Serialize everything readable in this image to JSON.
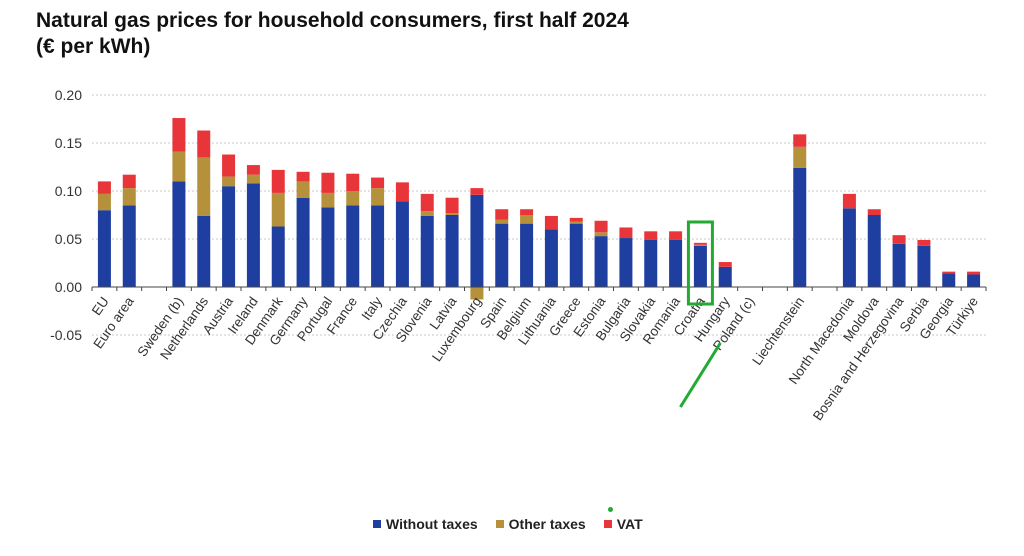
{
  "chart_data": {
    "type": "bar",
    "stacked": true,
    "title": "Natural gas prices for household consumers, first half 2024",
    "subtitle": "(€ per kWh)",
    "ylim": [
      -0.05,
      0.2
    ],
    "yticks": [
      "0.20",
      "0.15",
      "0.10",
      "0.05",
      "0.00",
      "-0.05"
    ],
    "ytick_values": [
      0.2,
      0.15,
      0.1,
      0.05,
      0.0,
      -0.05
    ],
    "grid": true,
    "legend_position": "bottom",
    "categories": [
      "EU",
      "Euro area",
      "",
      "Sweden (b)",
      "Netherlands",
      "Austria",
      "Ireland",
      "Denmark",
      "Germany",
      "Portugal",
      "France",
      "Italy",
      "Czechia",
      "Slovenia",
      "Latvia",
      "Luxembourg",
      "Spain",
      "Belgium",
      "Lithuania",
      "Greece",
      "Estonia",
      "Bulgaria",
      "Slovakia",
      "Romania",
      "Croatia",
      "Hungary",
      "Poland (c)",
      "",
      "Liechtenstein",
      "",
      "North Macedonia",
      "Moldova",
      "Bosnia and Herzegovina",
      "Serbia",
      "Georgia",
      "Türkiye"
    ],
    "series": [
      {
        "name": "Without taxes",
        "color": "#1f3fa0",
        "values": [
          0.08,
          0.085,
          null,
          0.11,
          0.074,
          0.105,
          0.108,
          0.063,
          0.093,
          0.083,
          0.085,
          0.085,
          0.089,
          0.074,
          0.075,
          0.096,
          0.066,
          0.066,
          0.06,
          0.066,
          0.053,
          0.051,
          0.049,
          0.049,
          0.043,
          0.021,
          null,
          null,
          0.124,
          null,
          0.082,
          0.075,
          0.045,
          0.043,
          0.014,
          0.013
        ]
      },
      {
        "name": "Other taxes",
        "color": "#b4913a",
        "values": [
          0.017,
          0.018,
          null,
          0.031,
          0.061,
          0.01,
          0.009,
          0.035,
          0.017,
          0.015,
          0.015,
          0.018,
          0.0,
          0.005,
          0.002,
          -0.013,
          0.004,
          0.009,
          0.0,
          0.002,
          0.004,
          0.0,
          0.0,
          0.0,
          0.001,
          0.0,
          null,
          null,
          0.022,
          null,
          0.0,
          0.0,
          0.0,
          0.0,
          0.0,
          0.0
        ]
      },
      {
        "name": "VAT",
        "color": "#e8353a",
        "values": [
          0.013,
          0.014,
          null,
          0.035,
          0.028,
          0.023,
          0.01,
          0.024,
          0.01,
          0.021,
          0.018,
          0.011,
          0.02,
          0.018,
          0.016,
          0.007,
          0.011,
          0.006,
          0.014,
          0.004,
          0.012,
          0.011,
          0.009,
          0.009,
          0.002,
          0.005,
          null,
          null,
          0.013,
          null,
          0.015,
          0.006,
          0.009,
          0.006,
          0.002,
          0.003
        ]
      }
    ],
    "highlight": {
      "category": "Croatia",
      "color": "#22aa33"
    }
  }
}
